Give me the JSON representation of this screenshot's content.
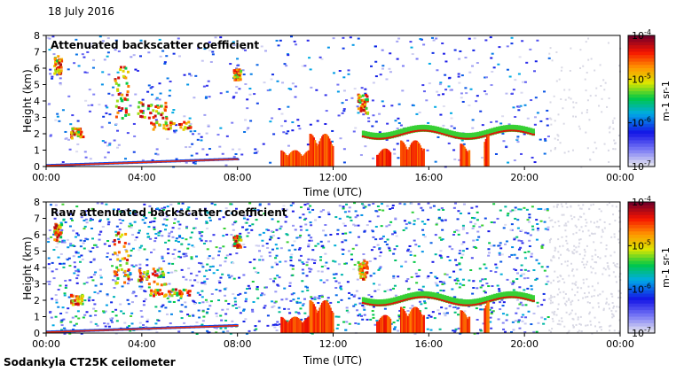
{
  "date_label": "18 July 2016",
  "footer_label": "Sodankyla CT25K ceilometer",
  "chart_data": [
    {
      "type": "heatmap",
      "title": "Attenuated backscatter coefficient",
      "xlabel": "Time (UTC)",
      "ylabel": "Height (km)",
      "xlim_hours": [
        0,
        24
      ],
      "ylim_km": [
        0,
        8
      ],
      "x_ticks": [
        "00:00",
        "04:00",
        "08:00",
        "12:00",
        "16:00",
        "20:00",
        "00:00"
      ],
      "y_ticks": [
        "0",
        "1",
        "2",
        "3",
        "4",
        "5",
        "6",
        "7",
        "8"
      ],
      "colorbar": {
        "scale": "log",
        "label": "m-1 sr-1",
        "ticks": [
          "10-4",
          "10-5",
          "10-6",
          "10-7"
        ],
        "range": [
          1e-07,
          0.0001
        ]
      },
      "noise_level": 0.25,
      "valid_until_hours": 21
    },
    {
      "type": "heatmap",
      "title": "Raw attenuated backscatter coefficient",
      "xlabel": "Time (UTC)",
      "ylabel": "Height (km)",
      "xlim_hours": [
        0,
        24
      ],
      "ylim_km": [
        0,
        8
      ],
      "x_ticks": [
        "00:00",
        "04:00",
        "08:00",
        "12:00",
        "16:00",
        "20:00",
        "00:00"
      ],
      "y_ticks": [
        "0",
        "1",
        "2",
        "3",
        "4",
        "5",
        "6",
        "7",
        "8"
      ],
      "colorbar": {
        "scale": "log",
        "label": "m-1 sr-1",
        "ticks": [
          "10-4",
          "10-5",
          "10-6",
          "10-7"
        ],
        "range": [
          1e-07,
          0.0001
        ]
      },
      "noise_level": 0.85,
      "valid_until_hours": 21
    }
  ]
}
